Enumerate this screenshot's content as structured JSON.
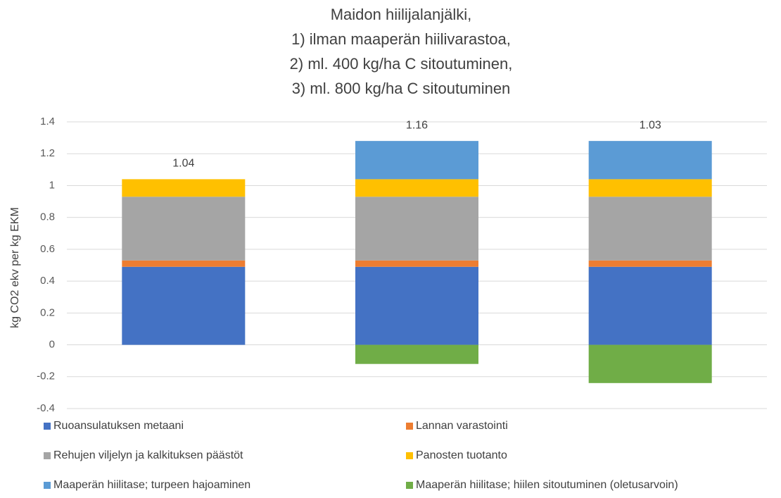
{
  "chart_data": {
    "type": "stacked_bar",
    "title": [
      "Maidon hiilijalanjälki,",
      "1) ilman maaperän hiilivarastoa,",
      "2) ml. 400 kg/ha C sitoutuminen,",
      "3) ml. 800 kg/ha C sitoutuminen"
    ],
    "y_label": "kg CO2 ekv per kg EKM",
    "categories": [
      null,
      null,
      null
    ],
    "series": [
      {
        "name": "Ruoansulatuksen metaani",
        "color": "#4472c4",
        "values": [
          0.49,
          0.49,
          0.49
        ]
      },
      {
        "name": "Lannan varastointi",
        "color": "#ed7d31",
        "values": [
          0.04,
          0.04,
          0.04
        ]
      },
      {
        "name": "Rehujen viljelyn ja kalkituksen päästöt",
        "color": "#a5a5a5",
        "values": [
          0.4,
          0.4,
          0.4
        ]
      },
      {
        "name": "Panosten tuotanto",
        "color": "#ffc000",
        "values": [
          0.11,
          0.11,
          0.11
        ]
      },
      {
        "name": "Maaperän hiilitase; turpeen hajoaminen",
        "color": "#5b9bd5",
        "values": [
          0,
          0.24,
          0.24
        ]
      },
      {
        "name": "Maaperän hiilitase; hiilen sitoutuminen (oletusarvoin)",
        "color": "#70ad47",
        "values": [
          0,
          -0.12,
          -0.24
        ]
      }
    ],
    "totals": [
      1.04,
      1.16,
      1.03
    ],
    "ylim": [
      -0.4,
      1.4
    ],
    "yticks": [
      -0.4,
      -0.2,
      0,
      0.2,
      0.4,
      0.6,
      0.8,
      1,
      1.2,
      1.4
    ],
    "grid": true,
    "legend": "bottom"
  }
}
